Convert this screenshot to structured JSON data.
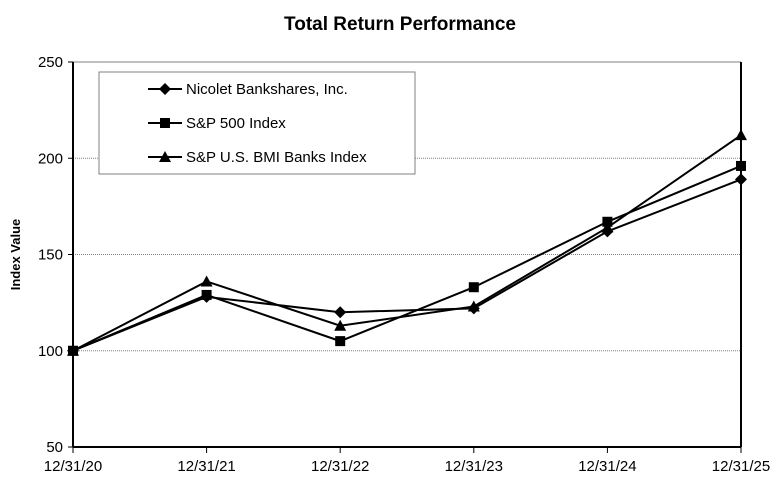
{
  "chart_data": {
    "type": "line",
    "title": "Total Return Performance",
    "xlabel": "",
    "ylabel": "Index Value",
    "ylim": [
      50,
      250
    ],
    "yticks": [
      50,
      100,
      150,
      200,
      250
    ],
    "grid": true,
    "legend_position": "upper-left",
    "categories": [
      "12/31/20",
      "12/31/21",
      "12/31/22",
      "12/31/23",
      "12/31/24",
      "12/31/25"
    ],
    "series": [
      {
        "name": "Nicolet Bankshares, Inc.",
        "marker": "diamond",
        "values": [
          100,
          128,
          120,
          122,
          162,
          189
        ]
      },
      {
        "name": "S&P 500 Index",
        "marker": "square",
        "values": [
          100,
          129,
          105,
          133,
          167,
          196
        ]
      },
      {
        "name": "S&P U.S. BMI Banks Index",
        "marker": "triangle",
        "values": [
          100,
          136,
          113,
          123,
          164,
          212
        ]
      }
    ]
  },
  "colors": {
    "line": "#000000",
    "grid": "#808080",
    "legend_border": "#808080"
  }
}
